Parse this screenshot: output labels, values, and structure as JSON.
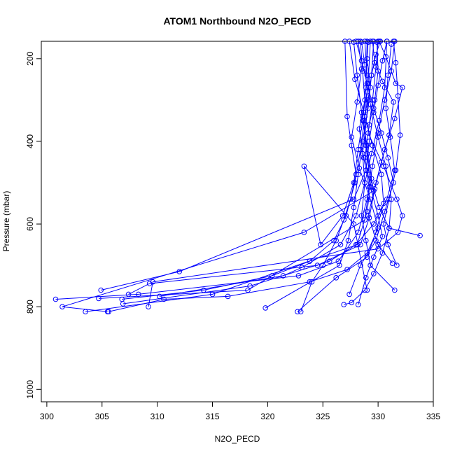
{
  "chart_data": {
    "type": "line",
    "title": "ATOM1 Northbound N2O_PECD",
    "xlabel": "N2O_PECD",
    "ylabel": "Pressure (mbar)",
    "xlim": [
      299.5,
      335
    ],
    "ylim": [
      1030,
      158
    ],
    "y_reversed": true,
    "x_ticks": [
      300,
      305,
      310,
      315,
      320,
      325,
      330,
      335
    ],
    "y_ticks": [
      200,
      400,
      600,
      800,
      1000
    ],
    "grid": false,
    "legend": "none",
    "marker": "open-circle",
    "color": "#0000ff",
    "series": [
      {
        "x": [
          330.2,
          329.8,
          329.4,
          329.1,
          328.9,
          328.6,
          328.8,
          328.5,
          328.9,
          329.3,
          331.5
        ],
        "y": [
          158,
          190,
          240,
          300,
          360,
          430,
          500,
          580,
          640,
          700,
          760
        ]
      },
      {
        "x": [
          328.5,
          328.8,
          329.0,
          328.6,
          328.9,
          329.2,
          330.1,
          331.0,
          333.8
        ],
        "y": [
          160,
          215,
          280,
          340,
          410,
          480,
          560,
          610,
          628
        ]
      },
      {
        "x": [
          329.1,
          329.0,
          329.3,
          328.7,
          329.0,
          329.6,
          323.3,
          301.4,
          305.5
        ],
        "y": [
          160,
          200,
          270,
          350,
          430,
          520,
          620,
          800,
          812
        ]
      },
      {
        "x": [
          330.8,
          330.4,
          330.0,
          329.6,
          329.2,
          328.9,
          327.8,
          312.0,
          304.9
        ],
        "y": [
          158,
          205,
          265,
          330,
          400,
          470,
          540,
          715,
          760
        ]
      },
      {
        "x": [
          331.5,
          331.2,
          330.6,
          330.0,
          329.5,
          329.0,
          328.2,
          326.4,
          322.8,
          308.3,
          300.8
        ],
        "y": [
          158,
          230,
          300,
          380,
          460,
          540,
          620,
          690,
          725,
          770,
          782
        ]
      },
      {
        "x": [
          329.5,
          329.7,
          330.4,
          331.4,
          331.0,
          330.3,
          329.7,
          329.2,
          328.4,
          324.5,
          309.3,
          307.4
        ],
        "y": [
          158,
          210,
          255,
          305,
          385,
          450,
          515,
          585,
          650,
          700,
          744,
          770
        ]
      },
      {
        "x": [
          328.4,
          328.6,
          328.8,
          328.3,
          328.7,
          329.2,
          328.8,
          318.2,
          304.7
        ],
        "y": [
          158,
          230,
          300,
          370,
          440,
          510,
          590,
          760,
          780
        ]
      },
      {
        "x": [
          327.8,
          328.1,
          328.5,
          329.0,
          329.4,
          329.0,
          328.1,
          315.0,
          303.5
        ],
        "y": [
          160,
          240,
          330,
          410,
          490,
          570,
          650,
          770,
          812
        ]
      },
      {
        "x": [
          330.0,
          329.8,
          329.5,
          329.1,
          330.5,
          331.7,
          332.2,
          331.8,
          330.0,
          309.6,
          309.2
        ],
        "y": [
          158,
          220,
          300,
          380,
          460,
          540,
          580,
          620,
          660,
          740,
          800
        ]
      },
      {
        "x": [
          329.3,
          329.1,
          328.8,
          328.4,
          327.9,
          327.1,
          326.0,
          323.8,
          320.4,
          314.2,
          306.8
        ],
        "y": [
          158,
          260,
          340,
          420,
          500,
          580,
          640,
          690,
          725,
          760,
          782
        ]
      },
      {
        "x": [
          331.2,
          330.9,
          330.7,
          331.1,
          331.5,
          330.8,
          329.6,
          328.0,
          325.6,
          318.4,
          306.9
        ],
        "y": [
          165,
          240,
          320,
          390,
          470,
          540,
          600,
          650,
          690,
          750,
          793
        ]
      },
      {
        "x": [
          328.2,
          328.5,
          328.1,
          327.6,
          328.3,
          329.3,
          330.0,
          329.0,
          327.2,
          323.8,
          316.4,
          310.6,
          305.6
        ],
        "y": [
          158,
          225,
          305,
          390,
          465,
          540,
          610,
          670,
          710,
          740,
          775,
          782,
          812
        ]
      },
      {
        "x": [
          327.4,
          327.9,
          328.7,
          329.5,
          330.3,
          330.5,
          329.8,
          329.0,
          326.2,
          322.7
        ],
        "y": [
          158,
          250,
          330,
          410,
          480,
          550,
          620,
          680,
          730,
          812
        ]
      },
      {
        "x": [
          329.6,
          329.4,
          329.1,
          328.6,
          328.2,
          327.8,
          327.3,
          326.5,
          319.8
        ],
        "y": [
          158,
          240,
          320,
          400,
          480,
          560,
          640,
          700,
          803
        ]
      },
      {
        "x": [
          330.8,
          330.6,
          330.1,
          329.4,
          328.8,
          328.0,
          326.6,
          323.1,
          321.4,
          310.2
        ],
        "y": [
          158,
          270,
          350,
          430,
          500,
          580,
          650,
          705,
          725,
          775
        ]
      },
      {
        "x": [
          330.1,
          330.7,
          331.6,
          332.2,
          331.5,
          330.6,
          329.8,
          329.1,
          330.0,
          331.3
        ],
        "y": [
          158,
          195,
          260,
          270,
          345,
          420,
          500,
          580,
          650,
          695
        ]
      },
      {
        "x": [
          328.0,
          328.5,
          329.0,
          329.6,
          330.3,
          330.9,
          331.4,
          330.6,
          329.8,
          328.4,
          327.4
        ],
        "y": [
          158,
          205,
          260,
          320,
          380,
          440,
          500,
          570,
          640,
          700,
          770
        ]
      },
      {
        "x": [
          329.0,
          328.9,
          328.6,
          328.2,
          327.8,
          326.8,
          324.8,
          323.3,
          327.8,
          329.0
        ],
        "y": [
          158,
          270,
          350,
          420,
          500,
          580,
          650,
          460,
          600,
          760
        ]
      },
      {
        "x": [
          331.4,
          331.6,
          331.8,
          332.0,
          331.6,
          331.0,
          330.5,
          330.9,
          331.7
        ],
        "y": [
          158,
          210,
          290,
          385,
          470,
          540,
          600,
          650,
          700
        ]
      },
      {
        "x": [
          329.9,
          330.0,
          329.7,
          329.2,
          328.8,
          329.3,
          330.0,
          330.4,
          329.6,
          328.9,
          328.2
        ],
        "y": [
          160,
          230,
          300,
          360,
          440,
          510,
          580,
          630,
          680,
          730,
          795
        ]
      },
      {
        "x": [
          327.0,
          327.2,
          327.6,
          328.0,
          327.5,
          326.9,
          326.2,
          325.0,
          324.0,
          323.0
        ],
        "y": [
          158,
          340,
          410,
          480,
          540,
          590,
          640,
          700,
          740,
          812
        ]
      },
      {
        "x": [
          328.8,
          329.0,
          329.3,
          330.0,
          330.7,
          331.2,
          331.0,
          330.4,
          329.6,
          328.8,
          327.6,
          326.9
        ],
        "y": [
          158,
          240,
          310,
          390,
          460,
          540,
          610,
          670,
          720,
          760,
          790,
          795
        ]
      }
    ]
  }
}
